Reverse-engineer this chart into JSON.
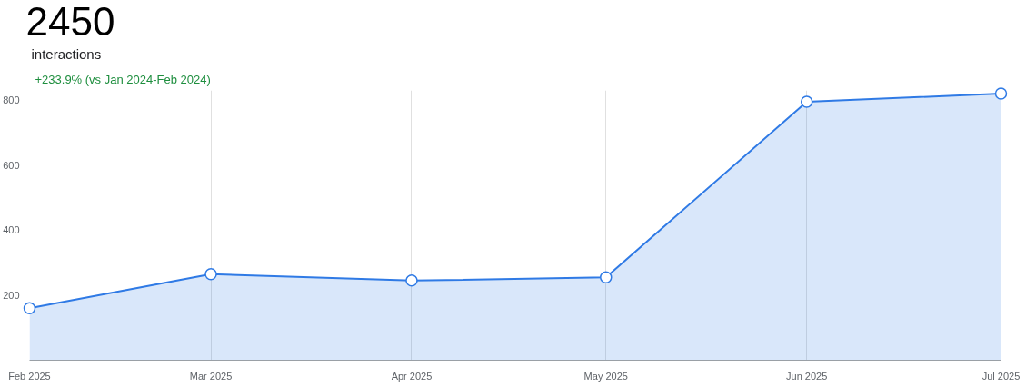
{
  "chart_data": {
    "type": "area",
    "title": "2450",
    "subtitle": "interactions",
    "annotations": [
      "+233.9% (vs Jan 2024-Feb 2024)"
    ],
    "x": [
      "2025-02",
      "2025-03",
      "2025-04",
      "2025-05",
      "2025-06",
      "2025-07"
    ],
    "series": [
      {
        "color": "#2f7ae5",
        "values": [
          160,
          265,
          245,
          255,
          795,
          820
        ]
      }
    ],
    "xlim": [
      "2025-02",
      "2025-07"
    ],
    "xticks": [
      {
        "value": "2025-02",
        "label": "Feb 2025"
      },
      {
        "value": "2025-03",
        "label": "Mar 2025"
      },
      {
        "value": "2025-04",
        "label": "Apr 2025"
      },
      {
        "value": "2025-05",
        "label": "May 2025"
      },
      {
        "value": "2025-06",
        "label": "Jun 2025"
      },
      {
        "value": "2025-07",
        "label": "Jul 2025"
      }
    ],
    "ylim": [
      0,
      830
    ],
    "yticks": [
      200,
      400,
      600,
      800
    ],
    "grid": "x",
    "marker": "circle",
    "line_style": "solid"
  }
}
